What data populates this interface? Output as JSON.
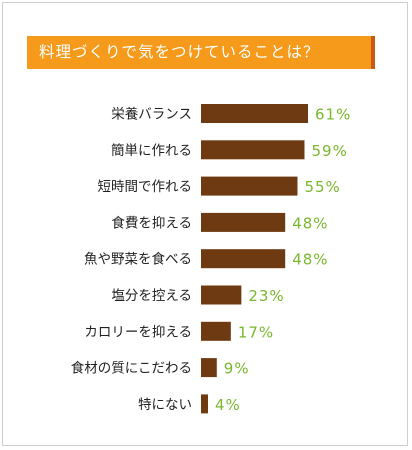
{
  "chart_data": {
    "type": "bar",
    "orientation": "horizontal",
    "title": "料理づくりで気をつけていることは？",
    "xlabel": "",
    "ylabel": "",
    "xlim": [
      0,
      100
    ],
    "grid": false,
    "categories": [
      "栄養バランス",
      "簡単に作れる",
      "短時間で作れる",
      "食費を抑える",
      "魚や野菜を食べる",
      "塩分を控える",
      "カロリーを抑える",
      "食材の質にこだわる",
      "特にない"
    ],
    "values": [
      61,
      59,
      55,
      48,
      48,
      23,
      17,
      9,
      4
    ],
    "value_labels": [
      "61%",
      "59%",
      "55%",
      "48%",
      "48%",
      "23%",
      "17%",
      "9%",
      "4%"
    ],
    "colors": {
      "bar": "#6e3a12",
      "value_label": "#7ab82e",
      "category_label": "#222222",
      "title_bg": "#f59a1a",
      "title_accent": "#c95a0e",
      "title_text": "#ffffff"
    }
  }
}
